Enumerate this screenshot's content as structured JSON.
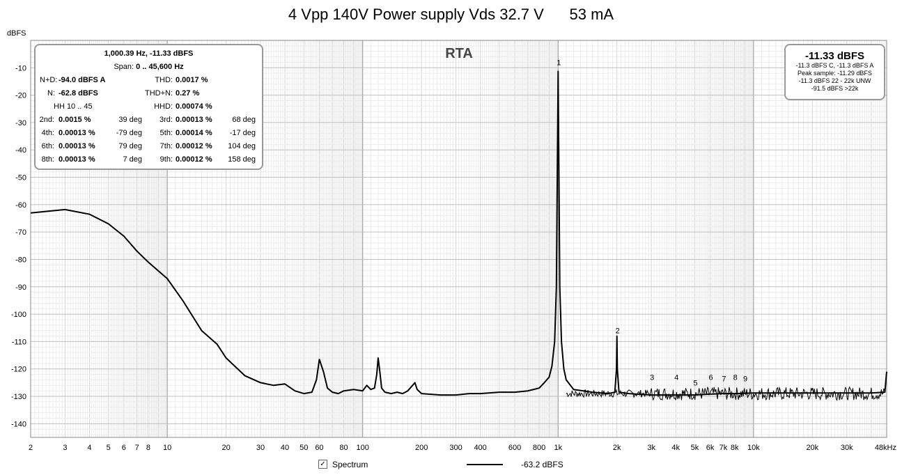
{
  "chart_data": {
    "type": "line",
    "title": "4 Vpp 140V Power supply Vds 32.7 V      53 mA",
    "xlabel": "",
    "ylabel": "dBFS",
    "overlay_label": "RTA",
    "xscale": "log",
    "xlim": [
      2,
      48000
    ],
    "ylim": [
      -145,
      0
    ],
    "grid": true,
    "x_ticks": [
      2,
      3,
      4,
      5,
      6,
      7,
      8,
      10,
      20,
      30,
      40,
      50,
      60,
      80,
      100,
      200,
      300,
      400,
      600,
      800,
      1000,
      2000,
      3000,
      4000,
      5000,
      6000,
      7000,
      8000,
      10000,
      20000,
      30000,
      48000
    ],
    "x_tick_labels": [
      "2",
      "3",
      "4",
      "5",
      "6",
      "7",
      "8",
      "10",
      "20",
      "30",
      "40",
      "50",
      "60",
      "80",
      "100",
      "200",
      "300",
      "400",
      "600",
      "800",
      "1k",
      "2k",
      "3k",
      "4k",
      "5k",
      "6k",
      "7k",
      "8k",
      "10k",
      "20k",
      "30k",
      "48kHz"
    ],
    "y_ticks": [
      -10,
      -20,
      -30,
      -40,
      -50,
      -60,
      -70,
      -80,
      -90,
      -100,
      -110,
      -120,
      -130,
      -140
    ],
    "y_tick_labels": [
      "-10",
      "-20",
      "-30",
      "-40",
      "-50",
      "-60",
      "-70",
      "-80",
      "-90",
      "-100",
      "-110",
      "-120",
      "-130",
      "-140"
    ],
    "series": [
      {
        "name": "",
        "color": "#000000",
        "x": [
          2,
          3,
          4,
          5,
          6,
          7,
          8,
          10,
          12,
          15,
          18,
          20,
          25,
          30,
          35,
          40,
          45,
          50,
          55,
          58,
          60,
          63,
          66,
          70,
          75,
          80,
          90,
          100,
          105,
          110,
          115,
          118,
          120,
          122,
          125,
          130,
          140,
          150,
          160,
          170,
          180,
          185,
          190,
          200,
          250,
          300,
          350,
          400,
          500,
          600,
          700,
          800,
          850,
          900,
          930,
          960,
          980,
          1000,
          1020,
          1040,
          1070,
          1100,
          1200,
          1500,
          1800,
          1950,
          1990,
          2000,
          2010,
          2050,
          2300,
          3000,
          4000,
          5000,
          6000,
          7000,
          8000,
          10000,
          15000,
          20000,
          30000,
          40000,
          47000,
          48000
        ],
        "y": [
          -63,
          -61.8,
          -63.5,
          -67,
          -71.5,
          -77,
          -81,
          -87,
          -95,
          -106,
          -111,
          -116,
          -122.5,
          -125,
          -126,
          -125.5,
          -128,
          -129,
          -128.5,
          -124,
          -116.5,
          -121,
          -127,
          -128.5,
          -129,
          -128,
          -127.5,
          -128,
          -126,
          -127.5,
          -127,
          -122,
          -116,
          -120,
          -127,
          -128.5,
          -129,
          -128.5,
          -129,
          -128,
          -126,
          -125,
          -127.5,
          -129,
          -129.5,
          -129.5,
          -129,
          -129,
          -128.5,
          -128.5,
          -128,
          -127,
          -125,
          -123,
          -119,
          -110,
          -90,
          -11.3,
          -90,
          -110,
          -120,
          -124,
          -127.5,
          -128.5,
          -129,
          -128.5,
          -120,
          -108,
          -120,
          -128.5,
          -129,
          -129.5,
          -129.5,
          -129.5,
          -129.2,
          -129,
          -129,
          -128.8,
          -128.8,
          -128.8,
          -128.8,
          -128.8,
          -128.5,
          -121
        ]
      }
    ],
    "harmonic_markers": [
      {
        "label": "1",
        "x": 1000,
        "y": -9
      },
      {
        "label": "2",
        "x": 2000,
        "y": -107
      },
      {
        "label": "3",
        "x": 3000,
        "y": -124
      },
      {
        "label": "4",
        "x": 4000,
        "y": -124
      },
      {
        "label": "5",
        "x": 5000,
        "y": -126
      },
      {
        "label": "6",
        "x": 6000,
        "y": -124
      },
      {
        "label": "7",
        "x": 7000,
        "y": -124.5
      },
      {
        "label": "8",
        "x": 8000,
        "y": -124
      },
      {
        "label": "9",
        "x": 9000,
        "y": -124.5
      }
    ]
  },
  "info_box": {
    "line1": "1,000.39 Hz, -11.33 dBFS",
    "span_label": "Span:",
    "span_value": "0 .. 45,600 Hz",
    "nd_label": "N+D:",
    "nd_value": "-94.0 dBFS A",
    "thd_label": "THD:",
    "thd_value": "0.0017 %",
    "n_label": "N:",
    "n_value": "-62.8 dBFS",
    "thdn_label": "THD+N:",
    "thdn_value": "0.27 %",
    "hh_label": "HH 10 .. 45",
    "hhd_label": "HHD:",
    "hhd_value": "0.00074 %",
    "harmonics": [
      {
        "label": "2nd:",
        "value": "0.0015 %",
        "phase": "39 deg",
        "label2": "3rd:",
        "value2": "0.00013 %",
        "phase2": "68 deg"
      },
      {
        "label": "4th:",
        "value": "0.00013 %",
        "phase": "-79 deg",
        "label2": "5th:",
        "value2": "0.00014 %",
        "phase2": "-17 deg"
      },
      {
        "label": "6th:",
        "value": "0.00013 %",
        "phase": "79 deg",
        "label2": "7th:",
        "value2": "0.00012 %",
        "phase2": "104 deg"
      },
      {
        "label": "8th:",
        "value": "0.00013 %",
        "phase": "7 deg",
        "label2": "9th:",
        "value2": "0.00012 %",
        "phase2": "158 deg"
      }
    ]
  },
  "rms_box": {
    "main": "-11.33 dBFS",
    "line1": "-11.3 dBFS C, -11.3 dBFS A",
    "line2": "Peak sample: -11.29 dBFS",
    "line3": "-11.3 dBFS 22 - 22k UNW",
    "line4": "-91.5 dBFS >22k"
  },
  "legend": {
    "checkbox_mark": "✓",
    "spectrum_label": "Spectrum",
    "level_value": "-63.2 dBFS"
  }
}
